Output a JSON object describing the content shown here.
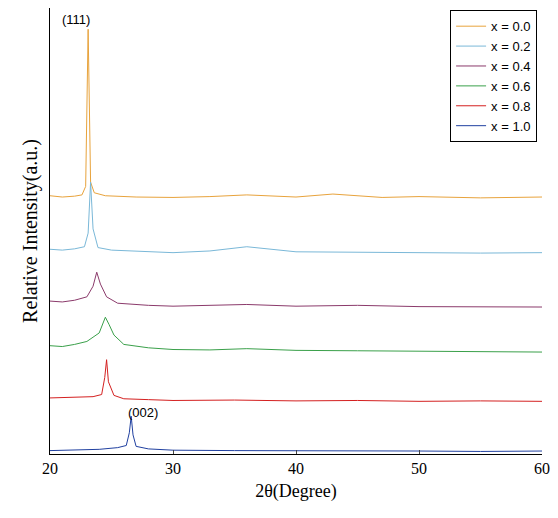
{
  "chart_data": {
    "type": "line",
    "x_label": "2θ(Degree)",
    "y_label": "Relative Intensity(a.u.)",
    "xlim": [
      20,
      60
    ],
    "xticks": [
      20,
      30,
      40,
      50,
      60
    ],
    "ylim": [
      0,
      105
    ],
    "yticks": [],
    "tick_labels": "x",
    "grid": false,
    "legend": "top right",
    "annotations": [
      {
        "text": "(111)",
        "x": 22.1,
        "y": 100
      },
      {
        "text": "(002)",
        "x": 27.6,
        "y": 7.5
      }
    ],
    "series": [
      {
        "name": "x = 0.0",
        "color": "#e8a33c",
        "x": [
          20,
          21,
          22,
          22.6,
          22.9,
          23.1,
          23.3,
          23.6,
          24.5,
          27,
          30,
          33,
          36,
          40,
          43,
          47,
          50,
          55,
          60
        ],
        "values": [
          60.8,
          60.5,
          60.7,
          61,
          63,
          100,
          64,
          61.5,
          60.8,
          60.5,
          60.4,
          60.6,
          61,
          60.5,
          61.2,
          60.4,
          60.6,
          60.3,
          60.5
        ]
      },
      {
        "name": "x = 0.2",
        "color": "#7ab8d8",
        "x": [
          20,
          21,
          22,
          22.8,
          23.1,
          23.3,
          23.5,
          23.9,
          25,
          28,
          30,
          33,
          36,
          40,
          45,
          50,
          55,
          60
        ],
        "values": [
          48.2,
          48,
          48.3,
          48.8,
          52,
          64,
          53,
          48.6,
          48,
          47.6,
          47.4,
          47.8,
          48.8,
          47.6,
          47.5,
          47.4,
          47.3,
          47.4
        ]
      },
      {
        "name": "x = 0.4",
        "color": "#8b3a6b",
        "x": [
          20,
          21,
          22,
          23,
          23.5,
          23.8,
          24.1,
          24.6,
          25.5,
          28,
          30,
          33,
          36,
          40,
          45,
          50,
          55,
          60
        ],
        "values": [
          36,
          35.8,
          36.2,
          37,
          39.5,
          42.8,
          40,
          37,
          35.5,
          35,
          34.8,
          35,
          35.2,
          34.8,
          35,
          34.7,
          34.6,
          34.6
        ]
      },
      {
        "name": "x = 0.6",
        "color": "#3aa04a",
        "x": [
          20,
          21,
          22,
          23,
          24,
          24.3,
          24.5,
          24.8,
          25.2,
          26,
          28,
          30,
          33,
          36,
          40,
          45,
          50,
          55,
          60
        ],
        "values": [
          25.5,
          25.3,
          25.8,
          26.5,
          28.5,
          31,
          32.2,
          30.5,
          28,
          25.8,
          25,
          24.6,
          24.5,
          24.8,
          24.4,
          24.3,
          24.2,
          24.1,
          24
        ]
      },
      {
        "name": "x = 0.8",
        "color": "#d42020",
        "x": [
          20,
          22,
          23.5,
          24.2,
          24.45,
          24.6,
          24.75,
          25.2,
          26,
          28,
          30,
          35,
          40,
          45,
          50,
          55,
          60
        ],
        "values": [
          13.2,
          13.3,
          13.5,
          14,
          18,
          22.2,
          17,
          13.8,
          13,
          12.8,
          12.6,
          12.7,
          12.5,
          12.6,
          12.4,
          12.5,
          12.4
        ]
      },
      {
        "name": "x = 1.0",
        "color": "#2040a0",
        "x": [
          20,
          22,
          24,
          25.5,
          26.2,
          26.45,
          26.6,
          26.75,
          27,
          28,
          30,
          35,
          40,
          45,
          50,
          55,
          60
        ],
        "values": [
          0.8,
          1,
          1.1,
          1.5,
          2,
          5,
          8.9,
          4.5,
          1.8,
          1.2,
          0.9,
          0.8,
          0.8,
          0.7,
          0.7,
          0.6,
          0.7
        ]
      }
    ]
  }
}
